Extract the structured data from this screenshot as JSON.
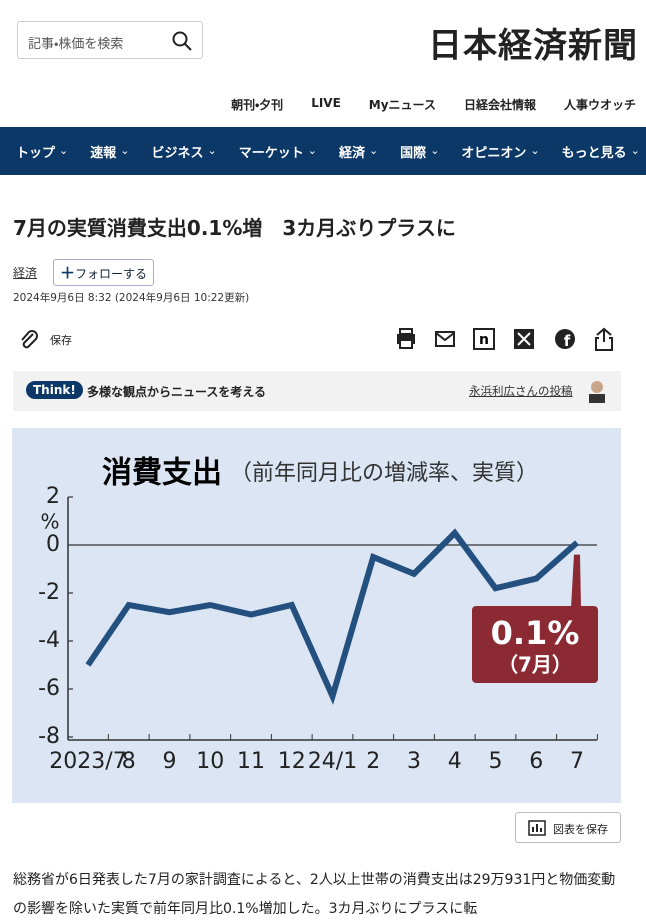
{
  "header": {
    "search_placeholder": "記事・株価を検索",
    "logo": "日本経済新聞",
    "links": [
      "朝刊・夕刊",
      "LIVE",
      "Myニュース",
      "日経会社情報",
      "人事ウオッチ"
    ],
    "nav": [
      "トップ",
      "速報",
      "ビジネス",
      "マーケット",
      "経済",
      "国際",
      "オピニオン",
      "もっと見る"
    ]
  },
  "article": {
    "title": "7月の実質消費支出0.1%増　3カ月ぶりプラスに",
    "tag": "経済",
    "follow": "フォローする",
    "date": "2024年9月6日 8:32 (2024年9月6日 10:22更新)",
    "save": "保存",
    "think_badge": "Think!",
    "think_text": "多様な観点からニュースを考える",
    "think_poster": "永浜利広さんの投稿",
    "save_chart": "図表を保存",
    "body": "総務省が6日発表した7月の家計調査によると、2人以上世帯の消費支出は29万931円と物価変動の影響を除いた実質で前年同月比0.1%増加した。3カ月ぶりにプラスに転"
  },
  "chart_data": {
    "type": "line",
    "title": "消費支出",
    "subtitle": "（前年同月比の増減率、実質）",
    "y_unit": "%",
    "categories": [
      "2023/7",
      "8",
      "9",
      "10",
      "11",
      "12",
      "24/1",
      "2",
      "3",
      "4",
      "5",
      "6",
      "7"
    ],
    "values": [
      -5.0,
      -2.5,
      -2.8,
      -2.5,
      -2.9,
      -2.5,
      -6.3,
      -0.5,
      -1.2,
      0.5,
      -1.8,
      -1.4,
      0.1
    ],
    "value_labels": [
      null,
      null,
      null,
      null,
      null,
      null,
      null,
      null,
      null,
      null,
      null,
      null,
      "0.1%"
    ],
    "annotation": "（7月）",
    "color": "#23507f",
    "label_color": "#8c2a34",
    "ylim": [
      -8,
      2
    ],
    "yticks": [
      2,
      0,
      -2,
      -4,
      -6,
      -8
    ]
  }
}
